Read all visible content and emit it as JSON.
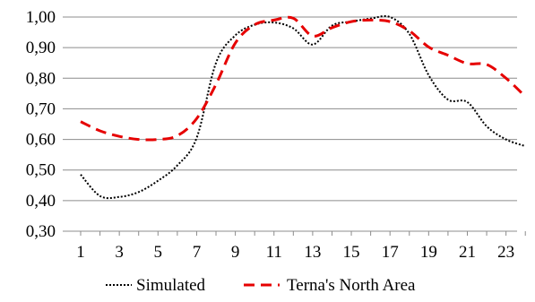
{
  "chart_data": {
    "type": "line",
    "title": "",
    "xlabel": "",
    "ylabel": "",
    "x": [
      1,
      2,
      3,
      4,
      5,
      6,
      7,
      8,
      9,
      10,
      11,
      12,
      13,
      14,
      15,
      16,
      17,
      18,
      19,
      20,
      21,
      22,
      23,
      24
    ],
    "x_tick_labels": [
      "1",
      "3",
      "5",
      "7",
      "9",
      "11",
      "13",
      "15",
      "17",
      "19",
      "21",
      "23"
    ],
    "x_tick_values": [
      1,
      3,
      5,
      7,
      9,
      11,
      13,
      15,
      17,
      19,
      21,
      23
    ],
    "xlim": [
      1,
      24
    ],
    "ylim": [
      0.3,
      1.0
    ],
    "y_ticks": [
      "1,00",
      "0,90",
      "0,80",
      "0,70",
      "0,60",
      "0,50",
      "0,40",
      "0,30"
    ],
    "y_tick_values": [
      1.0,
      0.9,
      0.8,
      0.7,
      0.6,
      0.5,
      0.4,
      0.3
    ],
    "grid": true,
    "legend": "bottom",
    "series": [
      {
        "name": "Simulated",
        "color": "#000000",
        "style": "dotted",
        "values": [
          0.485,
          0.415,
          0.412,
          0.428,
          0.465,
          0.515,
          0.605,
          0.85,
          0.94,
          0.975,
          0.982,
          0.963,
          0.91,
          0.972,
          0.985,
          0.995,
          1.0,
          0.945,
          0.81,
          0.73,
          0.722,
          0.643,
          0.6,
          0.578
        ]
      },
      {
        "name": "Terna's North Area",
        "color": "#e60000",
        "style": "dashed",
        "values": [
          0.658,
          0.628,
          0.61,
          0.6,
          0.6,
          0.612,
          0.668,
          0.78,
          0.915,
          0.975,
          0.99,
          0.996,
          0.938,
          0.965,
          0.985,
          0.99,
          0.985,
          0.955,
          0.902,
          0.875,
          0.848,
          0.845,
          0.8,
          0.74
        ]
      }
    ]
  }
}
